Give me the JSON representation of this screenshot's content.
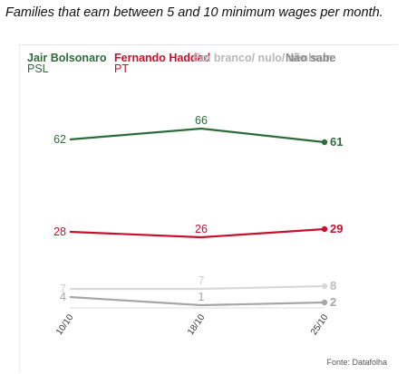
{
  "caption": "Families that earn between 5 and 10 minimum wages per month.",
  "source": "Fonte: Datafolha",
  "chart_data": {
    "type": "line",
    "x": [
      "10/10",
      "18/10",
      "25/10"
    ],
    "series": [
      {
        "name": "Jair Bolsonaro",
        "party": "PSL",
        "values": [
          62,
          66,
          61
        ],
        "color": "#2e6b3a"
      },
      {
        "name": "Fernando Haddad",
        "party": "PT",
        "values": [
          28,
          26,
          29
        ],
        "color": "#c8102e"
      },
      {
        "name": "Em branco/ nulo/ nenhum",
        "party": "",
        "values": [
          7,
          7,
          8
        ],
        "color": "#d8d8d8"
      },
      {
        "name": "Não sabe",
        "party": "",
        "values": [
          4,
          1,
          2
        ],
        "color": "#a6a6a6"
      }
    ]
  }
}
